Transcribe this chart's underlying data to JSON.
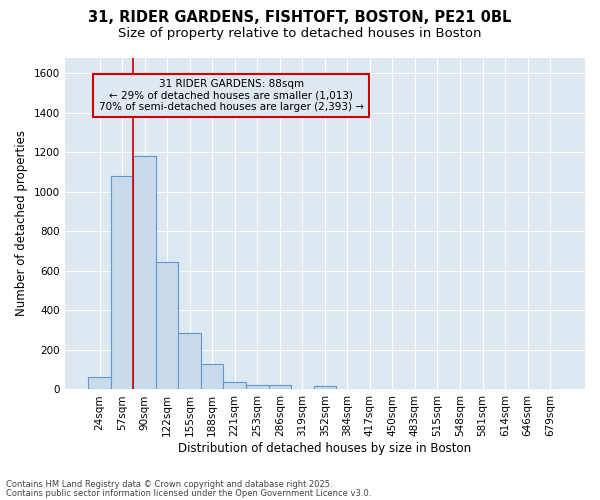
{
  "title_line1": "31, RIDER GARDENS, FISHTOFT, BOSTON, PE21 0BL",
  "title_line2": "Size of property relative to detached houses in Boston",
  "xlabel": "Distribution of detached houses by size in Boston",
  "ylabel": "Number of detached properties",
  "bar_labels": [
    "24sqm",
    "57sqm",
    "90sqm",
    "122sqm",
    "155sqm",
    "188sqm",
    "221sqm",
    "253sqm",
    "286sqm",
    "319sqm",
    "352sqm",
    "384sqm",
    "417sqm",
    "450sqm",
    "483sqm",
    "515sqm",
    "548sqm",
    "581sqm",
    "614sqm",
    "646sqm",
    "679sqm"
  ],
  "bar_values": [
    65,
    1080,
    1180,
    645,
    285,
    130,
    40,
    22,
    22,
    0,
    20,
    0,
    0,
    0,
    0,
    0,
    0,
    0,
    0,
    0,
    0
  ],
  "bar_color": "#c9daea",
  "bar_edge_color": "#5b9bd5",
  "bar_edge_width": 0.8,
  "plot_bg_color": "#dde8f0",
  "figure_bg_color": "#ffffff",
  "grid_color": "#ffffff",
  "red_line_bar_index": 2,
  "red_line_color": "#cc0000",
  "annotation_text": "31 RIDER GARDENS: 88sqm\n← 29% of detached houses are smaller (1,013)\n70% of semi-detached houses are larger (2,393) →",
  "ylim": [
    0,
    1680
  ],
  "yticks": [
    0,
    200,
    400,
    600,
    800,
    1000,
    1200,
    1400,
    1600
  ],
  "footnote_line1": "Contains HM Land Registry data © Crown copyright and database right 2025.",
  "footnote_line2": "Contains public sector information licensed under the Open Government Licence v3.0.",
  "title_fontsize": 10.5,
  "subtitle_fontsize": 9.5,
  "axis_label_fontsize": 8.5,
  "tick_fontsize": 7.5,
  "annotation_fontsize": 7.5,
  "footnote_fontsize": 6.0
}
